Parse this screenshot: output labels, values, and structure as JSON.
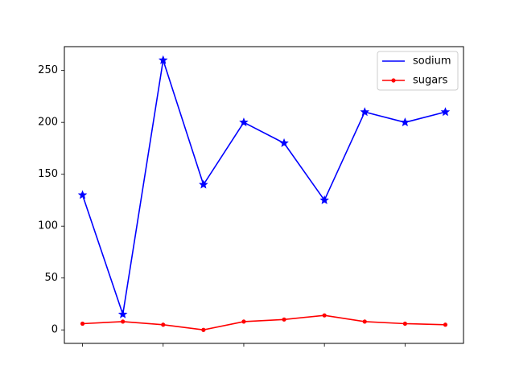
{
  "chart_data": {
    "type": "line",
    "title": "",
    "xlabel": "",
    "ylabel": "",
    "x": [
      0,
      1,
      2,
      3,
      4,
      5,
      6,
      7,
      8,
      9
    ],
    "xlim": [
      -0.45,
      9.45
    ],
    "ylim": [
      -13,
      273
    ],
    "xticks": [
      0,
      2,
      4,
      6,
      8
    ],
    "xtick_labels_shown": false,
    "yticks": [
      0,
      50,
      100,
      150,
      200,
      250
    ],
    "ytick_labels": [
      "0",
      "50",
      "100",
      "150",
      "200",
      "250"
    ],
    "grid": false,
    "legend_position": "upper right",
    "series": [
      {
        "name": "sodium",
        "color": "#0000ff",
        "marker": "star",
        "values": [
          130,
          15,
          260,
          140,
          200,
          180,
          125,
          210,
          200,
          210
        ]
      },
      {
        "name": "sugars",
        "color": "#ff0000",
        "marker": "dot",
        "values": [
          6,
          8,
          5,
          0,
          8,
          10,
          14,
          8,
          6,
          5
        ]
      }
    ]
  }
}
